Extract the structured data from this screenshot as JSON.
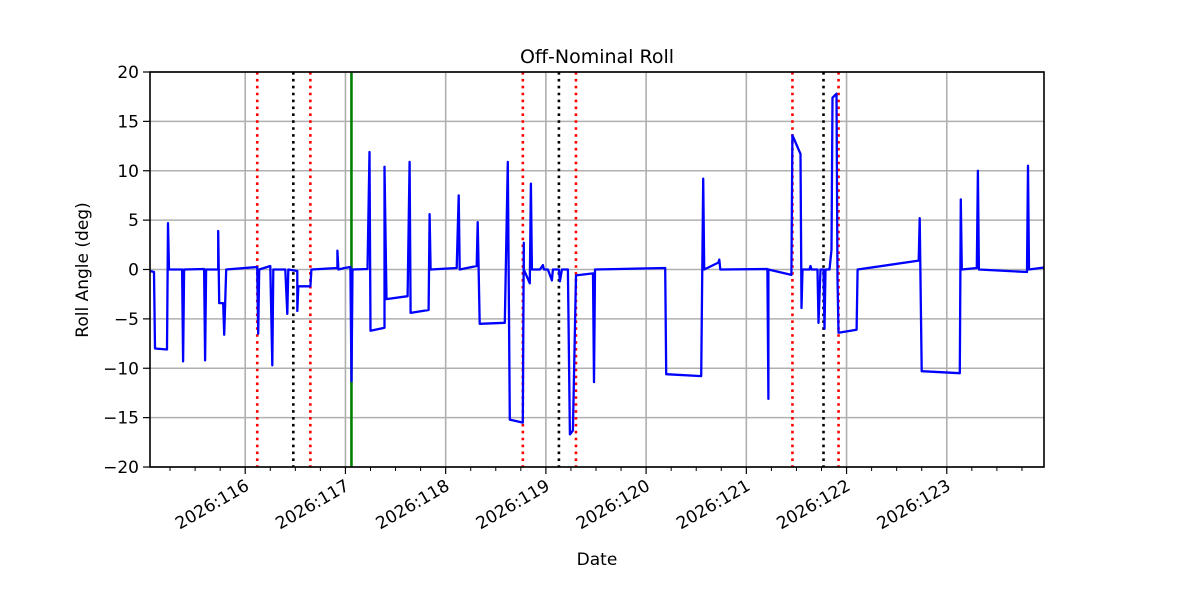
{
  "chart_data": {
    "type": "line",
    "title": "Off-Nominal Roll",
    "xlabel": "Date",
    "ylabel": "Roll Angle (deg)",
    "xlim": [
      115.05,
      123.97
    ],
    "ylim": [
      -20,
      20
    ],
    "grid": true,
    "x_ticks": [
      116,
      117,
      118,
      119,
      120,
      121,
      122,
      123
    ],
    "x_tick_labels": [
      "2026:116",
      "2026:117",
      "2026:118",
      "2026:119",
      "2026:120",
      "2026:121",
      "2026:122",
      "2026:123"
    ],
    "y_ticks": [
      -20,
      -15,
      -10,
      -5,
      0,
      5,
      10,
      15,
      20
    ],
    "y_tick_labels": [
      "−20",
      "−15",
      "−10",
      "−5",
      "0",
      "5",
      "10",
      "15",
      "20"
    ],
    "series": [
      {
        "name": "roll",
        "color": "#0000ff",
        "x": [
          115.05,
          115.09,
          115.1,
          115.22,
          115.23,
          115.24,
          115.37,
          115.38,
          115.39,
          115.59,
          115.6,
          115.61,
          115.73,
          115.73,
          115.74,
          115.78,
          115.79,
          115.81,
          116.12,
          116.13,
          116.14,
          116.25,
          116.27,
          116.28,
          116.4,
          116.42,
          116.43,
          116.52,
          116.52,
          116.53,
          116.65,
          116.66,
          116.92,
          116.92,
          116.93,
          116.99,
          117.05,
          117.06,
          117.07,
          117.22,
          117.24,
          117.25,
          117.39,
          117.39,
          117.41,
          117.62,
          117.64,
          117.65,
          117.83,
          117.84,
          117.85,
          118.11,
          118.13,
          118.14,
          118.31,
          118.32,
          118.34,
          118.59,
          118.62,
          118.64,
          118.77,
          118.78,
          118.78,
          118.84,
          118.85,
          118.86,
          118.94,
          118.97,
          118.98,
          119.02,
          119.06,
          119.07,
          119.13,
          119.14,
          119.16,
          119.22,
          119.24,
          119.27,
          119.3,
          119.47,
          119.48,
          119.49,
          120.19,
          120.2,
          120.55,
          120.57,
          120.58,
          120.72,
          120.73,
          120.74,
          121.21,
          121.22,
          121.22,
          121.45,
          121.46,
          121.54,
          121.55,
          121.56,
          121.63,
          121.64,
          121.65,
          121.71,
          121.72,
          121.74,
          121.77,
          121.78,
          121.79,
          121.83,
          121.85,
          121.86,
          121.9,
          121.91,
          121.92,
          122.1,
          122.11,
          122.72,
          122.73,
          122.75,
          123.13,
          123.14,
          123.15,
          123.3,
          123.31,
          123.32,
          123.8,
          123.81,
          123.82,
          123.97
        ],
        "y": [
          -0.15,
          -0.25,
          -8.0,
          -8.1,
          4.7,
          0,
          0,
          -9.3,
          0,
          0.05,
          -9.2,
          0,
          0,
          3.9,
          -3.4,
          -3.4,
          -6.6,
          0,
          0.25,
          -6.5,
          0,
          0.35,
          -9.7,
          0,
          0,
          -4.5,
          0,
          -0.15,
          -4.2,
          -1.7,
          -1.7,
          0,
          0.15,
          1.9,
          0,
          0.15,
          0.25,
          -11.3,
          0,
          0.05,
          11.9,
          -6.2,
          -5.9,
          10.4,
          -3.0,
          -2.7,
          10.9,
          -4.4,
          -4.1,
          5.6,
          0,
          0.15,
          7.5,
          0,
          0.35,
          4.8,
          -5.5,
          -5.4,
          10.9,
          -15.2,
          -15.5,
          2.7,
          0,
          -1.4,
          8.7,
          0,
          0,
          0.45,
          0,
          0,
          -1.1,
          0,
          0,
          -1.2,
          0,
          0,
          -16.7,
          -16.3,
          -0.6,
          -0.4,
          -11.4,
          0,
          0.15,
          -10.6,
          -10.8,
          9.2,
          0,
          0.7,
          1.0,
          0,
          0.05,
          -13.1,
          0,
          -0.55,
          13.6,
          11.7,
          -3.9,
          0,
          0,
          0.35,
          0,
          0,
          -5.4,
          0,
          0,
          -6.0,
          0,
          0,
          2.0,
          17.4,
          17.8,
          -0.9,
          -6.4,
          -6.1,
          0,
          0.9,
          5.2,
          -10.3,
          -10.5,
          7.1,
          0,
          0.15,
          10.0,
          0,
          -0.25,
          10.5,
          0,
          0.2
        ]
      }
    ],
    "vlines": [
      {
        "x": 116.12,
        "color": "#ff0000",
        "style": "dotted"
      },
      {
        "x": 116.48,
        "color": "#000000",
        "style": "dotted"
      },
      {
        "x": 116.65,
        "color": "#ff0000",
        "style": "dotted"
      },
      {
        "x": 117.06,
        "color": "#008000",
        "style": "solid"
      },
      {
        "x": 118.77,
        "color": "#ff0000",
        "style": "dotted"
      },
      {
        "x": 119.13,
        "color": "#000000",
        "style": "dotted"
      },
      {
        "x": 119.3,
        "color": "#ff0000",
        "style": "dotted"
      },
      {
        "x": 121.46,
        "color": "#ff0000",
        "style": "dotted"
      },
      {
        "x": 121.77,
        "color": "#000000",
        "style": "dotted"
      },
      {
        "x": 121.92,
        "color": "#ff0000",
        "style": "dotted"
      }
    ]
  }
}
